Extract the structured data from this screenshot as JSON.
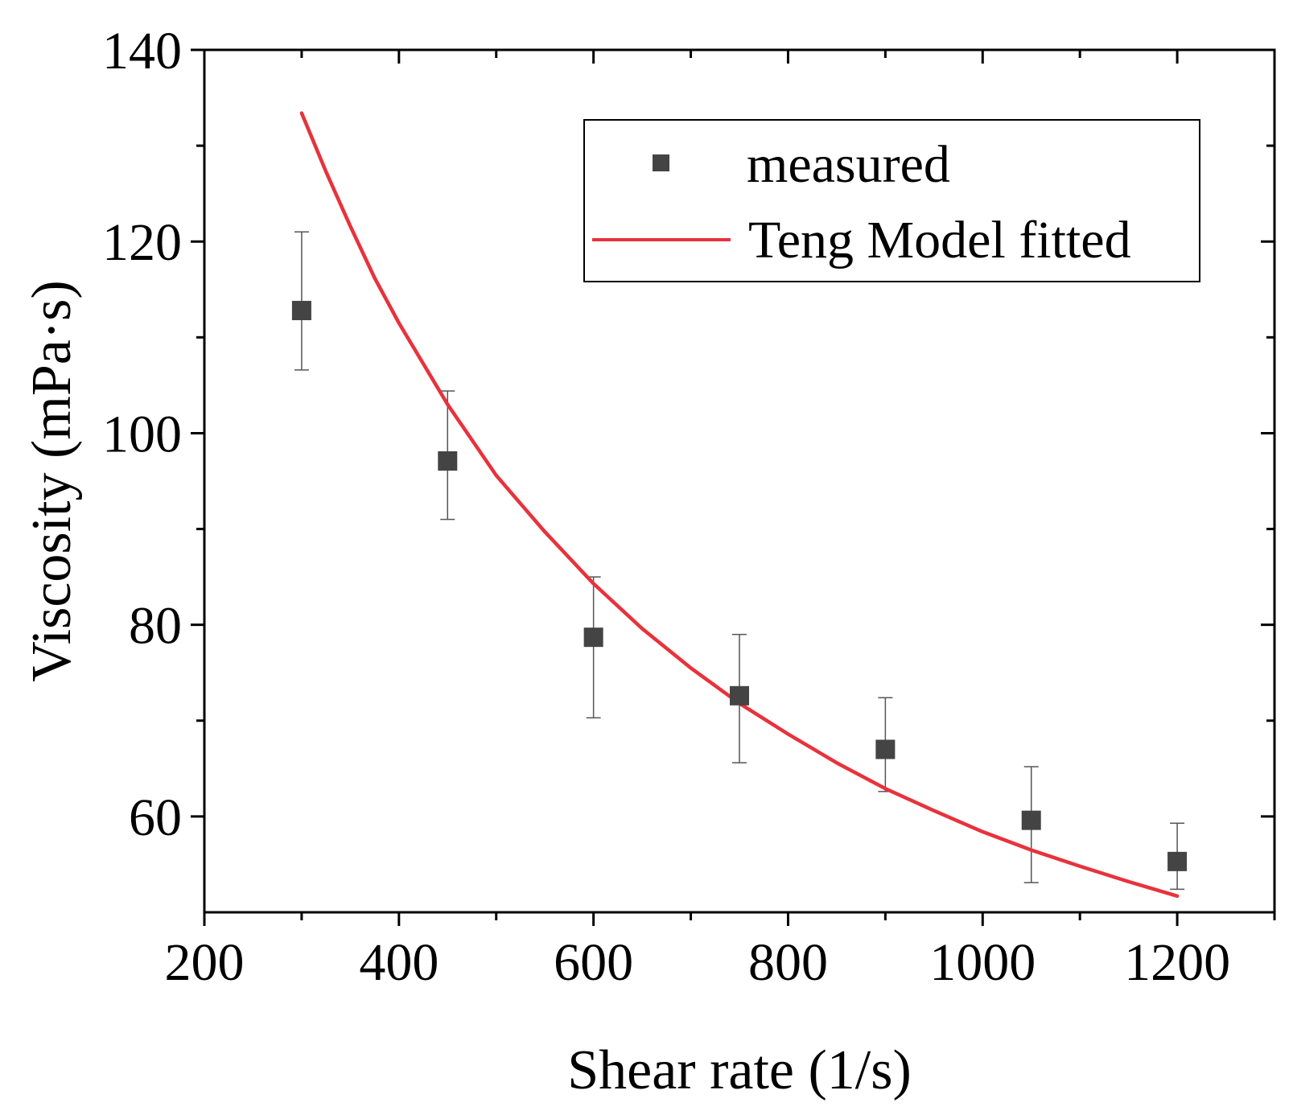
{
  "chart_data": {
    "type": "scatter",
    "title": "",
    "xlabel": "Shear rate (1/s)",
    "ylabel": "Viscosity (mPa·s)",
    "xlim": [
      200,
      1300
    ],
    "ylim": [
      50,
      140
    ],
    "x_ticks": [
      200,
      400,
      600,
      800,
      1000,
      1200
    ],
    "x_minor_ticks": [
      300,
      500,
      700,
      900,
      1100,
      1300
    ],
    "y_ticks": [
      60,
      80,
      100,
      120,
      140
    ],
    "y_minor_ticks": [
      70,
      90,
      110,
      130
    ],
    "legend_position": "top-right",
    "series": [
      {
        "name": "measured",
        "kind": "scatter-errorbar",
        "marker": "square",
        "color": "#444444",
        "x": [
          300,
          450,
          600,
          750,
          900,
          1050,
          1200
        ],
        "y": [
          112.8,
          97.1,
          78.7,
          72.6,
          67.0,
          59.6,
          55.3
        ],
        "err_low": [
          106.6,
          91.0,
          70.3,
          65.6,
          62.6,
          53.1,
          52.4
        ],
        "err_high": [
          121.0,
          104.4,
          85.0,
          79.0,
          72.4,
          65.2,
          59.3
        ]
      },
      {
        "name": "Teng Model fitted",
        "kind": "line",
        "color": "#e8323c",
        "x": [
          300,
          325,
          350,
          375,
          400,
          450,
          500,
          550,
          600,
          650,
          700,
          750,
          800,
          850,
          900,
          950,
          1000,
          1050,
          1100,
          1150,
          1200
        ],
        "y": [
          133.4,
          127.3,
          121.6,
          116.2,
          111.5,
          103.0,
          95.6,
          89.7,
          84.3,
          79.6,
          75.5,
          71.8,
          68.6,
          65.6,
          62.9,
          60.6,
          58.4,
          56.5,
          54.8,
          53.2,
          51.7
        ]
      }
    ]
  }
}
